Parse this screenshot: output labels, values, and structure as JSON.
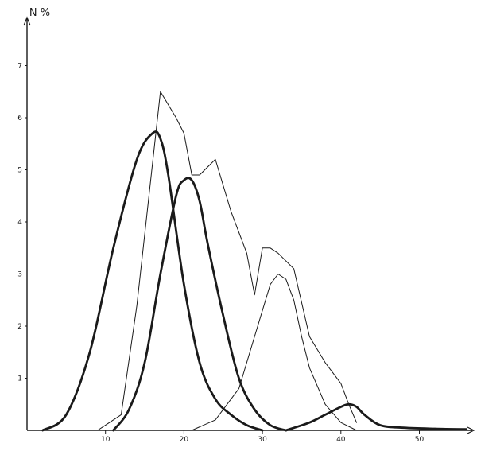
{
  "chart_data": {
    "type": "line",
    "title": "",
    "xlabel": "",
    "ylabel": "N %",
    "xlim": [
      0,
      57
    ],
    "ylim": [
      0,
      7.7
    ],
    "x_ticks": [
      10,
      20,
      30,
      40,
      50
    ],
    "y_ticks": [
      1,
      2,
      3,
      4,
      5,
      6,
      7
    ],
    "grid": false,
    "legend": "none",
    "colors": {
      "ink": "#1a1a1a",
      "background": "#ffffff"
    },
    "series": [
      {
        "style": "thin",
        "x": [
          9,
          12,
          14,
          17,
          19,
          20,
          21,
          22,
          24,
          26,
          28,
          29,
          30,
          31,
          32,
          34,
          36,
          38,
          40,
          41,
          42
        ],
        "y": [
          0,
          0.3,
          2.4,
          6.5,
          6.0,
          5.7,
          4.9,
          4.9,
          5.2,
          4.2,
          3.4,
          2.6,
          3.5,
          3.5,
          3.4,
          3.1,
          1.8,
          1.3,
          0.9,
          0.5,
          0.15
        ]
      },
      {
        "style": "bold",
        "x": [
          2,
          5,
          8,
          11,
          14,
          16,
          17,
          18,
          20,
          22,
          24,
          26,
          28,
          30
        ],
        "y": [
          0,
          0.3,
          1.5,
          3.5,
          5.2,
          5.7,
          5.6,
          4.9,
          2.8,
          1.3,
          0.6,
          0.3,
          0.1,
          0
        ]
      },
      {
        "style": "bold",
        "x": [
          11,
          13,
          15,
          17,
          19,
          20,
          21,
          22,
          23,
          25,
          27,
          29,
          31,
          33
        ],
        "y": [
          0,
          0.4,
          1.3,
          3.0,
          4.5,
          4.8,
          4.8,
          4.4,
          3.6,
          2.2,
          1.0,
          0.4,
          0.1,
          0
        ]
      },
      {
        "style": "thin",
        "x": [
          21,
          24,
          27,
          29,
          31,
          32,
          33,
          34,
          35,
          36,
          38,
          40,
          42
        ],
        "y": [
          0,
          0.2,
          0.8,
          1.8,
          2.8,
          3.0,
          2.9,
          2.5,
          1.8,
          1.2,
          0.5,
          0.15,
          0
        ]
      },
      {
        "style": "bold",
        "x": [
          33,
          36,
          38,
          40,
          41,
          42,
          43,
          45,
          48,
          52,
          56
        ],
        "y": [
          0,
          0.15,
          0.3,
          0.45,
          0.5,
          0.45,
          0.3,
          0.1,
          0.05,
          0.03,
          0.02
        ]
      }
    ]
  }
}
